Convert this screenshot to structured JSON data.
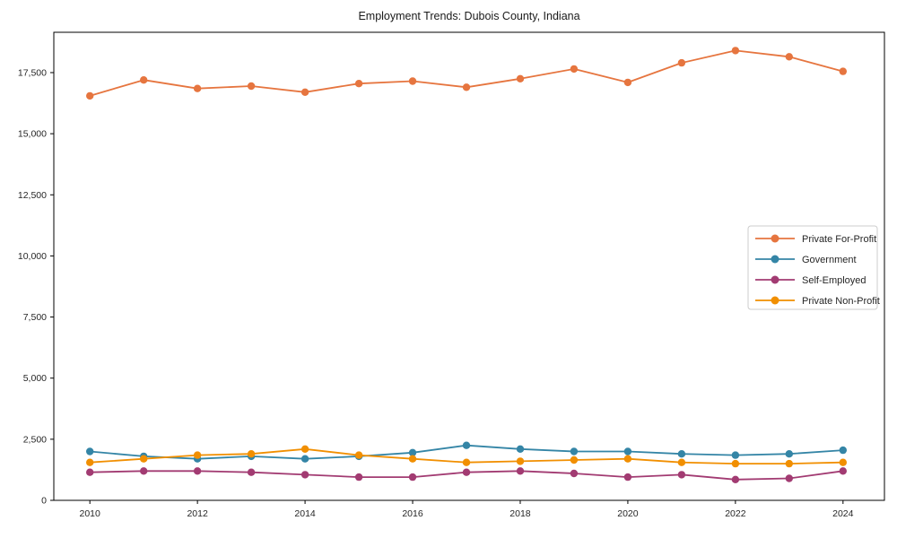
{
  "figure": {
    "background_color": "#ffffff",
    "spine_color": "#000000",
    "text_color": "#262626",
    "legend_border_color": "#cccccc"
  },
  "chart_data": {
    "type": "line",
    "title": "Employment Trends: Dubois County, Indiana",
    "xlabel": "",
    "ylabel": "",
    "x": [
      2010,
      2011,
      2012,
      2013,
      2014,
      2015,
      2016,
      2017,
      2018,
      2019,
      2020,
      2021,
      2022,
      2023,
      2024
    ],
    "xticks": [
      2010,
      2012,
      2014,
      2016,
      2018,
      2020,
      2022,
      2024
    ],
    "yticks": [
      0,
      2500,
      5000,
      7500,
      10000,
      12500,
      15000,
      17500
    ],
    "xlim": [
      2009.33,
      2024.77
    ],
    "ylim": [
      0,
      19150
    ],
    "grid": false,
    "legend_position": "center-right",
    "marker": "circle",
    "series": [
      {
        "name": "Private For-Profit",
        "color": "#E6753F",
        "values": [
          16550,
          17200,
          16850,
          16950,
          16700,
          17050,
          17150,
          16900,
          17250,
          17650,
          17100,
          17900,
          18400,
          18150,
          17550
        ]
      },
      {
        "name": "Government",
        "color": "#3485A6",
        "values": [
          2000,
          1800,
          1700,
          1800,
          1700,
          1800,
          1950,
          2250,
          2100,
          2000,
          2000,
          1900,
          1850,
          1900,
          2050
        ]
      },
      {
        "name": "Self-Employed",
        "color": "#A23B72",
        "values": [
          1150,
          1200,
          1200,
          1150,
          1050,
          950,
          950,
          1150,
          1200,
          1100,
          950,
          1050,
          850,
          900,
          1200
        ]
      },
      {
        "name": "Private Non-Profit",
        "color": "#F18F01",
        "values": [
          1550,
          1700,
          1850,
          1900,
          2100,
          1850,
          1700,
          1550,
          1600,
          1650,
          1700,
          1550,
          1500,
          1500,
          1550
        ]
      }
    ]
  }
}
